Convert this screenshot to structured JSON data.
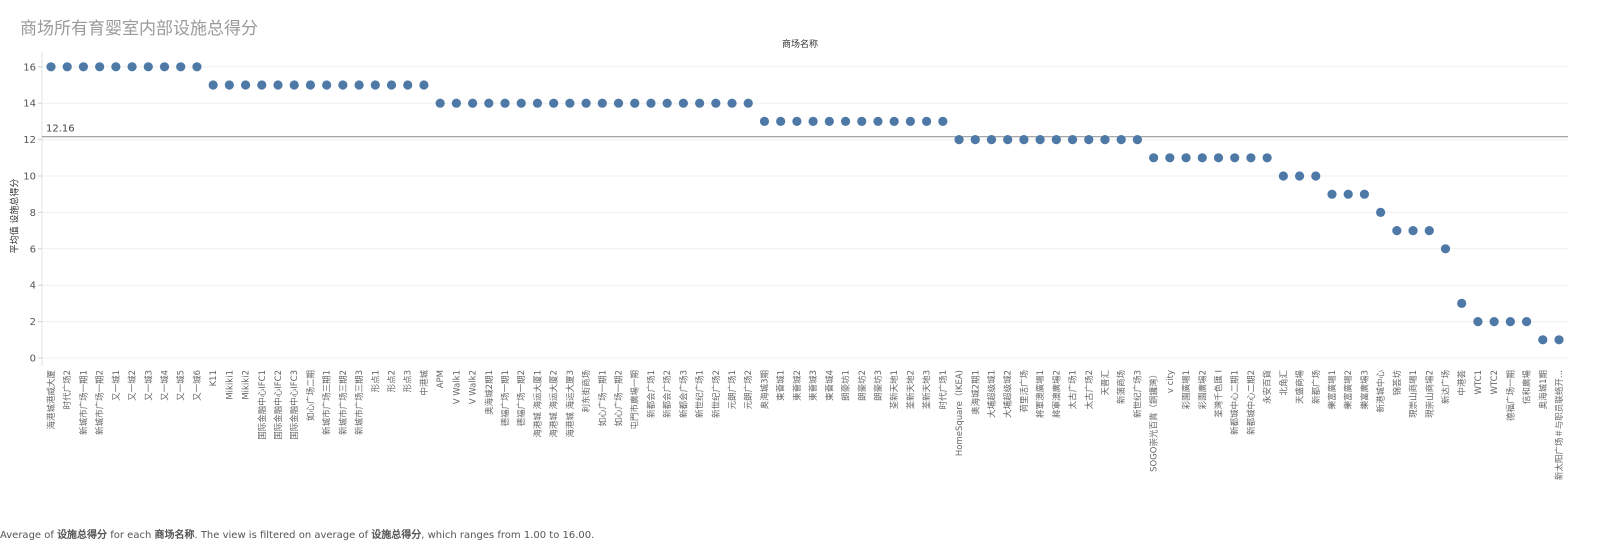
{
  "chart_data": {
    "type": "scatter",
    "title": "商场所有育婴室内部设施总得分",
    "xlabel": "商场名称",
    "ylabel": "平均值 设施总得分",
    "ylim": [
      0,
      17
    ],
    "yticks": [
      0,
      2,
      4,
      6,
      8,
      10,
      12,
      14,
      16
    ],
    "reference_line": {
      "value": 12.16,
      "label": "12.16"
    },
    "color": "#4e79a7",
    "grid": true,
    "categories": [
      "海港城港威大厦",
      "时代广场2",
      "新城市广场一期1",
      "新城市广场一期2",
      "又一城1",
      "又一城2",
      "又一城3",
      "又一城4",
      "又一城5",
      "又一城6",
      "K11",
      "Mikiki1",
      "Mikiki2",
      "国际金融中心IFC1",
      "国际金融中心IFC2",
      "国际金融中心IFC3",
      "如心广场二期",
      "新城市广场三期1",
      "新城市广场三期2",
      "新城市广场三期3",
      "形点1",
      "形点2",
      "形点3",
      "中港城",
      "APM",
      "V Walk1",
      "V Walk2",
      "奥海城2期1",
      "德福广场一期1",
      "德福广场一期2",
      "海港城 海运大厦1",
      "海港城 海运大厦2",
      "海港城 海运大厦3",
      "利东街商场",
      "如心广场一期1",
      "如心广场一期2",
      "屯門市廣場一期",
      "新都会广场1",
      "新都会广场2",
      "新都会广场3",
      "新世纪广场1",
      "新世纪广场2",
      "元朗广场1",
      "元朗广场2",
      "奥海城3期",
      "東薈城1",
      "東薈城2",
      "東薈城3",
      "東薈城4",
      "朗豪坊1",
      "朗豪坊2",
      "朗豪坊3",
      "荃新天地1",
      "荃新天地2",
      "荃新天地3",
      "时代广场1",
      "HomeSquare（IKEA)",
      "奥海城2期1",
      "大埔超级城1",
      "大埔超级城2",
      "荷里活广场",
      "將軍澳廣場1",
      "將軍澳廣場2",
      "太古广场1",
      "太古广场2",
      "天晋汇",
      "新蒲商场",
      "新世纪广场3",
      "SOGO崇光百貨（銅鑼灣）",
      "v city",
      "彩園廣場1",
      "彩園廣場2",
      "荃灣千色匯 I",
      "新都城中心二期1",
      "新都城中心二期2",
      "永安百貨",
      "北角汇",
      "天盛商場",
      "新都广场",
      "樂富廣場1",
      "樂富廣場2",
      "樂富廣場3",
      "新港城中心",
      "锦荟坊",
      "現崇山商場1",
      "現崇山商場2",
      "新达广场",
      "中港荟",
      "WTC1",
      "WTC2",
      "德福广场一期",
      "信和廣場",
      "奥海城1期",
      "新太阳广场＃与职员联络开..."
    ],
    "values": [
      16,
      16,
      16,
      16,
      16,
      16,
      16,
      16,
      16,
      16,
      15,
      15,
      15,
      15,
      15,
      15,
      15,
      15,
      15,
      15,
      15,
      15,
      15,
      15,
      14,
      14,
      14,
      14,
      14,
      14,
      14,
      14,
      14,
      14,
      14,
      14,
      14,
      14,
      14,
      14,
      14,
      14,
      14,
      14,
      13,
      13,
      13,
      13,
      13,
      13,
      13,
      13,
      13,
      13,
      13,
      13,
      12,
      12,
      12,
      12,
      12,
      12,
      12,
      12,
      12,
      12,
      12,
      12,
      11,
      11,
      11,
      11,
      11,
      11,
      11,
      11,
      10,
      10,
      10,
      9,
      9,
      9,
      8,
      7,
      7,
      7,
      6,
      3,
      2,
      2,
      2,
      2,
      1,
      1
    ]
  },
  "footer": {
    "t1": "Average of ",
    "b1": "设施总得分",
    "t2": " for each ",
    "b2": "商场名称",
    "t3": ". The view is filtered on average of ",
    "b3": "设施总得分",
    "t4": ", which ranges from 1.00 to 16.00."
  }
}
